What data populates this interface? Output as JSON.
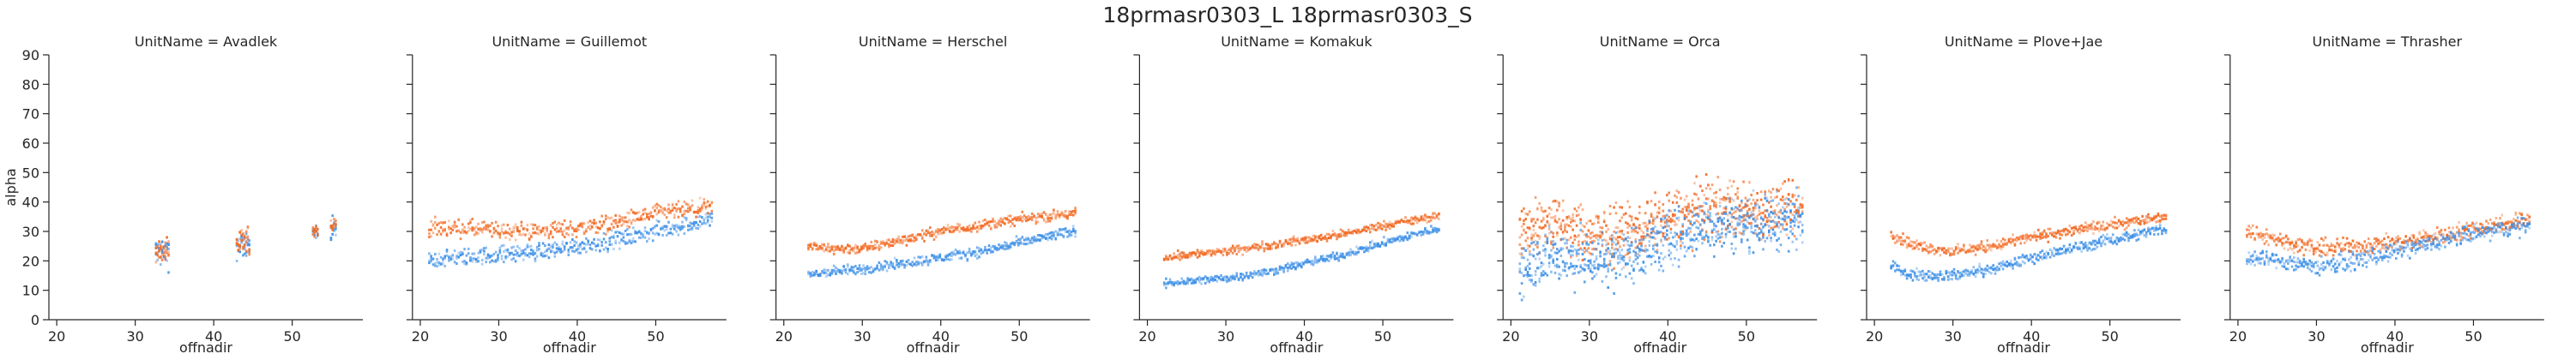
{
  "figure": {
    "title": "18prmasr0303_L 18prmasr0303_S"
  },
  "chart_data": {
    "type": "heatmap",
    "title": "18prmasr0303_L 18prmasr0303_S",
    "facet_label_prefix": "UnitName = ",
    "xlabel": "offnadir",
    "ylabel": "alpha",
    "xlim": [
      19,
      59
    ],
    "ylim": [
      0,
      90
    ],
    "xticks": [
      20,
      30,
      40,
      50
    ],
    "yticks": [
      0,
      10,
      20,
      30,
      40,
      50,
      60,
      70,
      80,
      90
    ],
    "grid": false,
    "colors": {
      "blue": "#3d8fe6",
      "orange": "#f26b24"
    },
    "facets": [
      {
        "name": "Avadlek",
        "clusters": [
          {
            "x": [
              32.5,
              34.2
            ],
            "blue": [
              19,
              27
            ],
            "orange": [
              20,
              25
            ],
            "spread": 6
          },
          {
            "x": [
              42.8,
              44.5
            ],
            "blue": [
              23,
              28
            ],
            "orange": [
              24,
              28
            ],
            "spread": 7
          },
          {
            "x": [
              52.5,
              53.2
            ],
            "blue": [
              29,
              31
            ],
            "orange": [
              29,
              31
            ],
            "spread": 3
          },
          {
            "x": [
              54.8,
              55.6
            ],
            "blue": [
              29,
              32
            ],
            "orange": [
              30,
              33
            ],
            "spread": 6
          }
        ]
      },
      {
        "name": "Guillemot",
        "series": [
          {
            "name": "orange",
            "x": [
              21,
              25,
              30,
              35,
              40,
              45,
              50,
              57
            ],
            "y": [
              31,
              31,
              30,
              30,
              31,
              33,
              36,
              38
            ]
          },
          {
            "name": "blue",
            "x": [
              21,
              25,
              30,
              35,
              40,
              45,
              50,
              57
            ],
            "y": [
              20,
              21,
              22,
              23,
              25,
              27,
              30,
              34
            ]
          }
        ],
        "noise": 2.5
      },
      {
        "name": "Herschel",
        "series": [
          {
            "name": "orange",
            "x": [
              23,
              25,
              30,
              35,
              40,
              45,
              50,
              57
            ],
            "y": [
              25,
              24,
              24,
              27,
              30,
              32,
              34,
              36
            ]
          },
          {
            "name": "blue",
            "x": [
              23,
              25,
              30,
              35,
              40,
              45,
              50,
              57
            ],
            "y": [
              15,
              16,
              17,
              19,
              21,
              23,
              26,
              30
            ]
          }
        ],
        "noise": 1.5
      },
      {
        "name": "Komakuk",
        "series": [
          {
            "name": "orange",
            "x": [
              22,
              25,
              30,
              35,
              40,
              45,
              50,
              57
            ],
            "y": [
              21,
              22,
              23,
              25,
              27,
              29,
              32,
              35
            ]
          },
          {
            "name": "blue",
            "x": [
              22,
              25,
              30,
              35,
              40,
              45,
              50,
              57
            ],
            "y": [
              12,
              13,
              14,
              16,
              19,
              22,
              26,
              31
            ]
          }
        ],
        "noise": 1.2
      },
      {
        "name": "Orca",
        "series": [
          {
            "name": "orange",
            "x": [
              21,
              25,
              30,
              35,
              40,
              45,
              50,
              57
            ],
            "y": [
              30,
              33,
              28,
              30,
              34,
              38,
              37,
              37
            ]
          },
          {
            "name": "blue",
            "x": [
              21,
              25,
              30,
              35,
              40,
              45,
              50,
              57
            ],
            "y": [
              18,
              22,
              20,
              22,
              27,
              32,
              33,
              34
            ]
          }
        ],
        "noise": 8
      },
      {
        "name": "Plove+Jae",
        "series": [
          {
            "name": "orange",
            "x": [
              22,
              25,
              30,
              35,
              40,
              45,
              50,
              57
            ],
            "y": [
              29,
              25,
              23,
              25,
              28,
              30,
              32,
              35
            ]
          },
          {
            "name": "blue",
            "x": [
              22,
              25,
              30,
              35,
              40,
              45,
              50,
              57
            ],
            "y": [
              18,
              15,
              15,
              17,
              21,
              24,
              27,
              31
            ]
          }
        ],
        "noise": 1.6
      },
      {
        "name": "Thrasher",
        "series": [
          {
            "name": "orange",
            "x": [
              21,
              25,
              30,
              35,
              40,
              45,
              50,
              57
            ],
            "y": [
              30,
              27,
              24,
              25,
              26,
              28,
              31,
              34
            ]
          },
          {
            "name": "blue",
            "x": [
              21,
              25,
              30,
              35,
              40,
              45,
              50,
              57
            ],
            "y": [
              21,
              20,
              18,
              20,
              23,
              26,
              29,
              32
            ]
          }
        ],
        "noise": 2.5
      }
    ]
  }
}
